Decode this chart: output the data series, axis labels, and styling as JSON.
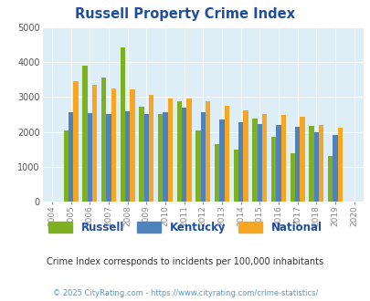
{
  "title": "Russell Property Crime Index",
  "years": [
    2004,
    2005,
    2006,
    2007,
    2008,
    2009,
    2010,
    2011,
    2012,
    2013,
    2014,
    2015,
    2016,
    2017,
    2018,
    2019,
    2020
  ],
  "russell": [
    null,
    2050,
    3900,
    3550,
    4420,
    2720,
    2500,
    2880,
    2050,
    1650,
    1500,
    2380,
    1850,
    1380,
    2170,
    1300,
    null
  ],
  "kentucky": [
    null,
    2560,
    2530,
    2500,
    2600,
    2500,
    2550,
    2700,
    2560,
    2350,
    2270,
    2220,
    2200,
    2140,
    1990,
    1910,
    null
  ],
  "national": [
    null,
    3450,
    3340,
    3250,
    3220,
    3050,
    2950,
    2950,
    2880,
    2740,
    2620,
    2500,
    2480,
    2440,
    2200,
    2120,
    null
  ],
  "russell_color": "#7db023",
  "kentucky_color": "#4f81bd",
  "national_color": "#f5a623",
  "bg_color": "#ddeef6",
  "ylim": [
    0,
    5000
  ],
  "yticks": [
    0,
    1000,
    2000,
    3000,
    4000,
    5000
  ],
  "subtitle": "Crime Index corresponds to incidents per 100,000 inhabitants",
  "footer": "© 2025 CityRating.com - https://www.cityrating.com/crime-statistics/",
  "title_color": "#1f4e9c",
  "subtitle_color": "#333333",
  "footer_color": "#5599cc"
}
